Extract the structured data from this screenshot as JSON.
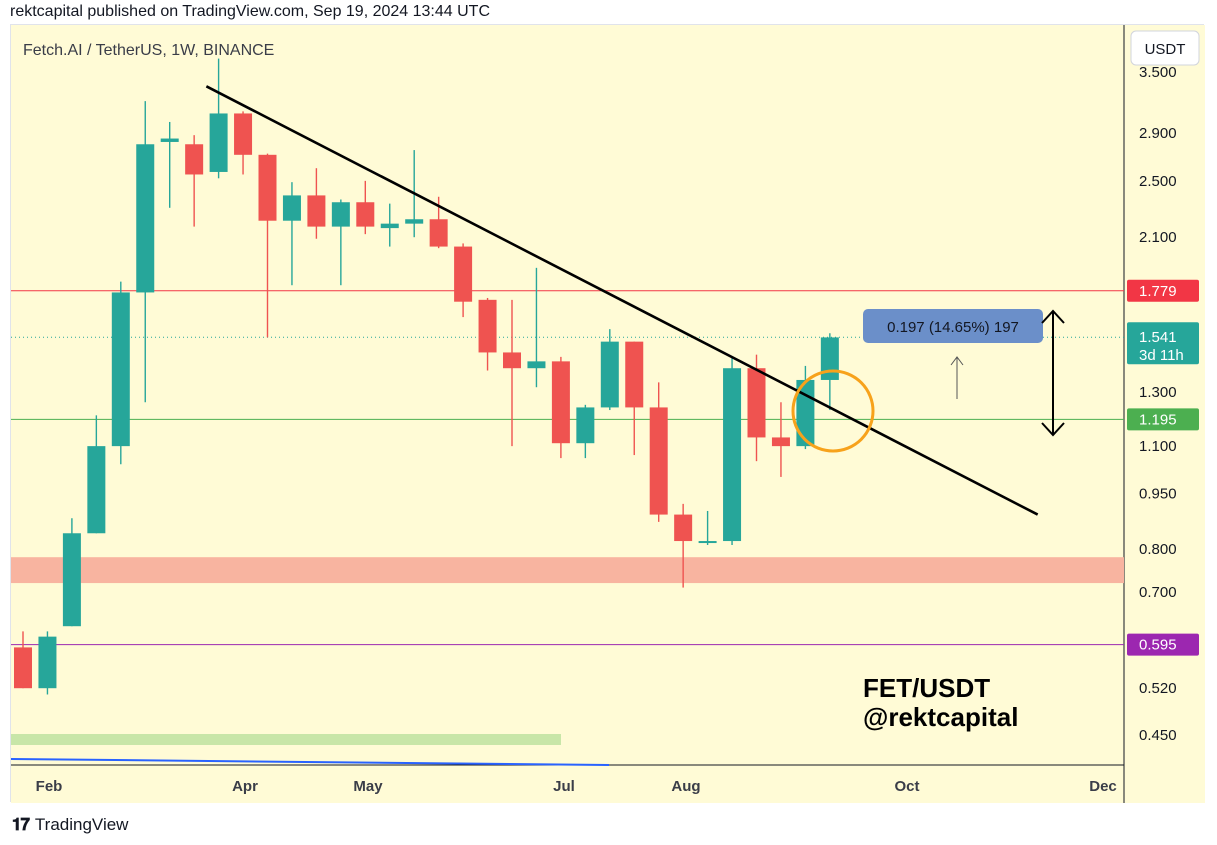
{
  "header": {
    "published": "rektcapital published on TradingView.com, Sep 19, 2024 13:44 UTC"
  },
  "footer": {
    "brand": "TradingView"
  },
  "colors": {
    "background": "#fffbd6",
    "bull": "#26a69a",
    "bear": "#ef5350",
    "resistance": "#f23645",
    "support": "#4caf50",
    "low_support": "#9c27b0",
    "zone": "#f8b4a0",
    "circle": "#f7a21b"
  },
  "chart_data": {
    "type": "candlestick",
    "title": "Fetch.AI / TetherUS, 1W, BINANCE",
    "currency_button": "USDT",
    "y_scale": "log",
    "ylim": [
      0.41,
      4.05
    ],
    "price_ticks": [
      "3.500",
      "2.900",
      "2.500",
      "2.100",
      "1.300",
      "1.100",
      "0.950",
      "0.800",
      "0.700",
      "0.520",
      "0.450"
    ],
    "x_ticks": [
      "Feb",
      "Apr",
      "May",
      "Jul",
      "Aug",
      "Oct",
      "Dec"
    ],
    "candles": [
      {
        "o": 0.59,
        "h": 0.62,
        "l": 0.52,
        "c": 0.52
      },
      {
        "o": 0.52,
        "h": 0.62,
        "l": 0.51,
        "c": 0.61
      },
      {
        "o": 0.63,
        "h": 0.88,
        "l": 0.63,
        "c": 0.84
      },
      {
        "o": 0.84,
        "h": 1.21,
        "l": 0.84,
        "c": 1.1
      },
      {
        "o": 1.1,
        "h": 1.83,
        "l": 1.04,
        "c": 1.77
      },
      {
        "o": 1.77,
        "h": 3.2,
        "l": 1.26,
        "c": 2.8
      },
      {
        "o": 2.82,
        "h": 3.0,
        "l": 2.3,
        "c": 2.85
      },
      {
        "o": 2.8,
        "h": 2.88,
        "l": 2.17,
        "c": 2.55
      },
      {
        "o": 2.57,
        "h": 3.65,
        "l": 2.52,
        "c": 3.08
      },
      {
        "o": 3.08,
        "h": 3.1,
        "l": 2.55,
        "c": 2.71
      },
      {
        "o": 2.71,
        "h": 2.72,
        "l": 1.54,
        "c": 2.21
      },
      {
        "o": 2.21,
        "h": 2.49,
        "l": 1.81,
        "c": 2.39
      },
      {
        "o": 2.39,
        "h": 2.6,
        "l": 2.09,
        "c": 2.17
      },
      {
        "o": 2.17,
        "h": 2.36,
        "l": 1.81,
        "c": 2.34
      },
      {
        "o": 2.34,
        "h": 2.5,
        "l": 2.12,
        "c": 2.17
      },
      {
        "o": 2.16,
        "h": 2.33,
        "l": 2.04,
        "c": 2.19
      },
      {
        "o": 2.19,
        "h": 2.75,
        "l": 2.1,
        "c": 2.22
      },
      {
        "o": 2.22,
        "h": 2.38,
        "l": 2.03,
        "c": 2.04
      },
      {
        "o": 2.04,
        "h": 2.06,
        "l": 1.64,
        "c": 1.72
      },
      {
        "o": 1.73,
        "h": 1.74,
        "l": 1.39,
        "c": 1.47
      },
      {
        "o": 1.47,
        "h": 1.73,
        "l": 1.1,
        "c": 1.4
      },
      {
        "o": 1.4,
        "h": 1.91,
        "l": 1.32,
        "c": 1.43
      },
      {
        "o": 1.43,
        "h": 1.45,
        "l": 1.06,
        "c": 1.11
      },
      {
        "o": 1.11,
        "h": 1.25,
        "l": 1.06,
        "c": 1.24
      },
      {
        "o": 1.24,
        "h": 1.58,
        "l": 1.23,
        "c": 1.52
      },
      {
        "o": 1.52,
        "h": 1.52,
        "l": 1.07,
        "c": 1.24
      },
      {
        "o": 1.24,
        "h": 1.34,
        "l": 0.87,
        "c": 0.89
      },
      {
        "o": 0.89,
        "h": 0.92,
        "l": 0.71,
        "c": 0.82
      },
      {
        "o": 0.82,
        "h": 0.9,
        "l": 0.81,
        "c": 0.82
      },
      {
        "o": 0.82,
        "h": 1.45,
        "l": 0.81,
        "c": 1.4
      },
      {
        "o": 1.4,
        "h": 1.46,
        "l": 1.05,
        "c": 1.13
      },
      {
        "o": 1.13,
        "h": 1.26,
        "l": 1.0,
        "c": 1.1
      },
      {
        "o": 1.1,
        "h": 1.41,
        "l": 1.09,
        "c": 1.35
      },
      {
        "o": 1.35,
        "h": 1.56,
        "l": 1.23,
        "c": 1.54
      }
    ],
    "horizontal_levels": [
      {
        "label": "1.779",
        "value": 1.779,
        "color": "#f23645"
      },
      {
        "label": "1.195",
        "value": 1.195,
        "color": "#4caf50"
      },
      {
        "label": "0.595",
        "value": 0.595,
        "color": "#9c27b0"
      }
    ],
    "last_price": {
      "label": "1.541",
      "countdown": "3d 11h",
      "value": 1.541,
      "color": "#26a69a"
    },
    "support_zone": [
      0.72,
      0.78
    ],
    "trendline": {
      "from": {
        "candle": 7.5,
        "price": 3.35
      },
      "to": {
        "candle": 41.5,
        "price": 0.89
      }
    },
    "measure_label": "0.197 (14.65%) 197",
    "watermark": [
      "FET/USDT",
      "@rektcapital"
    ]
  }
}
